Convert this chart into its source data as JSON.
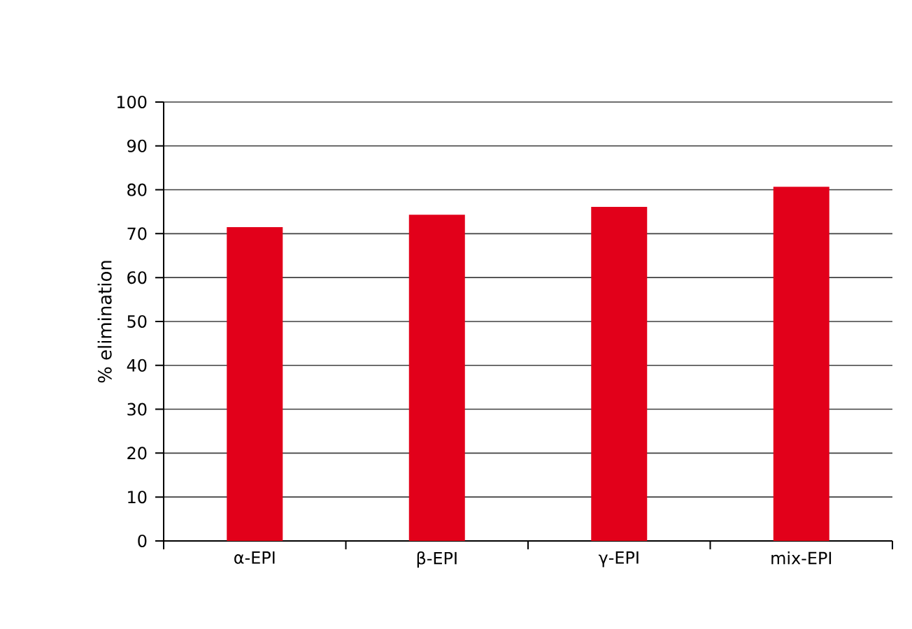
{
  "chart_data": {
    "type": "bar",
    "ylabel": "% elimination",
    "categories": [
      "α-EPI",
      "β-EPI",
      "γ-EPI",
      "mix-EPI"
    ],
    "values": [
      71.5,
      74.3,
      76.1,
      80.7
    ],
    "color": "#e2001a",
    "ylim": [
      0,
      100
    ],
    "yticks": [
      0,
      10,
      20,
      30,
      40,
      50,
      60,
      70,
      80,
      90,
      100
    ],
    "grid": "y"
  }
}
